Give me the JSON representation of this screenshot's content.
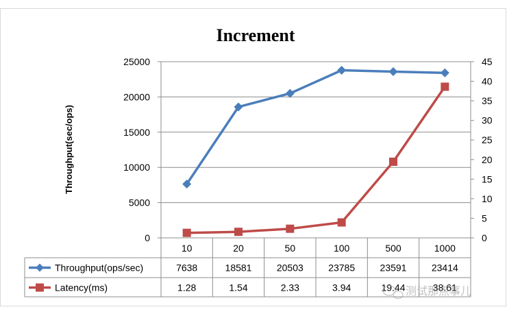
{
  "chart_data": {
    "type": "line",
    "title": "Increment",
    "ylabel": "Throughput(sec/ops)",
    "y2label": "",
    "categories": [
      "10",
      "20",
      "50",
      "100",
      "500",
      "1000"
    ],
    "ylim": [
      0,
      25000
    ],
    "y_ticks": [
      "0",
      "5000",
      "10000",
      "15000",
      "20000",
      "25000"
    ],
    "y2lim": [
      0,
      45
    ],
    "y2_ticks": [
      "0",
      "5",
      "10",
      "15",
      "20",
      "25",
      "30",
      "35",
      "40",
      "45"
    ],
    "grid": true,
    "legend": "data-table",
    "series": [
      {
        "name": "Throughput(ops/sec)",
        "axis": "left",
        "marker": "diamond",
        "color": "#4a7ebb",
        "values": [
          7638,
          18581,
          20503,
          23785,
          23591,
          23414
        ],
        "table_values": [
          "7638",
          "18581",
          "20503",
          "23785",
          "23591",
          "23414"
        ]
      },
      {
        "name": "Latency(ms)",
        "axis": "right",
        "marker": "square",
        "color": "#be4b48",
        "values": [
          1.28,
          1.54,
          2.33,
          3.94,
          19.44,
          38.61
        ],
        "table_values": [
          "1.28",
          "1.54",
          "2.33",
          "3.94",
          "19.44",
          "38.61"
        ]
      }
    ]
  },
  "watermark": {
    "text": "测试那点事儿"
  }
}
